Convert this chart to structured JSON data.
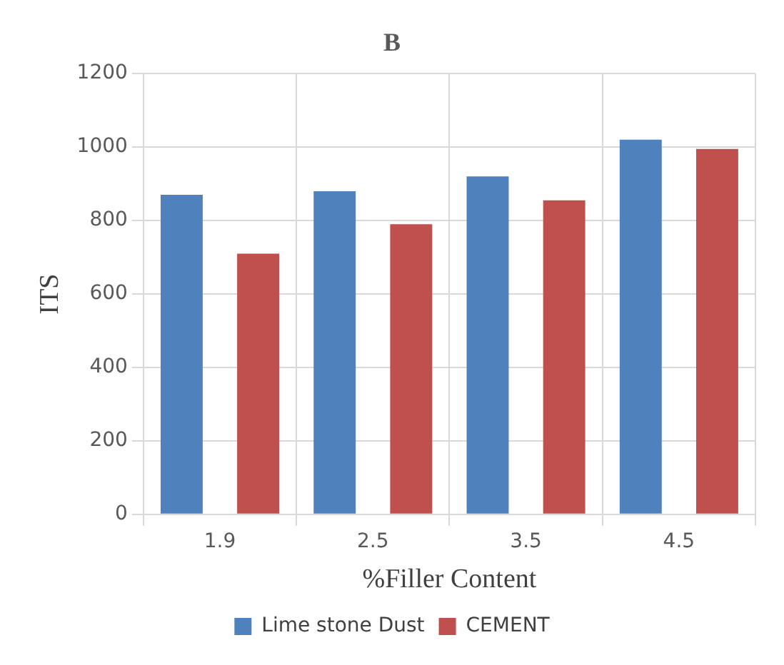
{
  "chart_data": {
    "type": "bar",
    "title": "B",
    "xlabel": "%Filler Content",
    "ylabel": "ITS",
    "categories": [
      "1.9",
      "2.5",
      "3.5",
      "4.5"
    ],
    "series": [
      {
        "name": "Lime stone Dust",
        "color": "#4f81bd",
        "values": [
          870,
          880,
          920,
          1020
        ]
      },
      {
        "name": "CEMENT",
        "color": "#c0504d",
        "values": [
          710,
          790,
          855,
          995
        ]
      }
    ],
    "ylim": [
      0,
      1200
    ],
    "yticks": [
      0,
      200,
      400,
      600,
      800,
      1000,
      1200
    ],
    "grid": true,
    "legend": "bottom"
  }
}
